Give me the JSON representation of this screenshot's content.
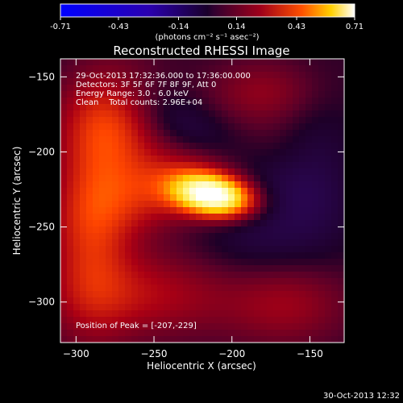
{
  "chart_data": {
    "type": "heatmap",
    "title": "Reconstructed RHESSI Image",
    "colorbar": {
      "tick_labels": [
        "-0.71",
        "-0.43",
        "-0.14",
        "0.14",
        "0.43",
        "0.71"
      ],
      "ticks": [
        -0.71,
        -0.43,
        -0.14,
        0.14,
        0.43,
        0.71
      ],
      "range": [
        -0.71,
        0.71
      ],
      "unit_label": "(photons cm⁻² s⁻¹ asec⁻²)",
      "colormap": "RHESSI signed (blue-purple-red-yellow-white)"
    },
    "info_lines": [
      "29-Oct-2013 17:32:36.000  to  17:36:00.000",
      "Detectors: 3F 5F 6F 7F 8F 9F, Att 0",
      "Energy Range: 3.0 - 6.0 keV",
      "Clean    Total counts: 2.96E+04"
    ],
    "peak_label": "Position of Peak = [-207,-229]",
    "peak": {
      "x": -207,
      "y": -229
    },
    "xlabel": "Heliocentric X (arcsec)",
    "ylabel": "Heliocentric Y (arcsec)",
    "xlim": [
      -310,
      -128
    ],
    "ylim": [
      -327,
      -138
    ],
    "xticks": [
      -300,
      -250,
      -200,
      -150
    ],
    "yticks": [
      -150,
      -200,
      -250,
      -300
    ],
    "xtick_labels": [
      "−300",
      "−250",
      "−200",
      "−150"
    ],
    "ytick_labels": [
      "−150",
      "−200",
      "−250",
      "−300"
    ],
    "grid": false,
    "sources": [
      {
        "x": -212,
        "y": -229,
        "sx": 17,
        "sy": 9,
        "amp": 0.71,
        "rot": -10
      },
      {
        "x": -240,
        "y": -222,
        "sx": 40,
        "sy": 18,
        "amp": 0.18,
        "rot": 20
      },
      {
        "x": -278,
        "y": -182,
        "sx": 22,
        "sy": 28,
        "amp": 0.22,
        "rot": 0
      },
      {
        "x": -290,
        "y": -255,
        "sx": 18,
        "sy": 45,
        "amp": 0.18,
        "rot": 0
      },
      {
        "x": -255,
        "y": -295,
        "sx": 40,
        "sy": 20,
        "amp": 0.14,
        "rot": 0
      },
      {
        "x": -165,
        "y": -300,
        "sx": 28,
        "sy": 20,
        "amp": 0.12,
        "rot": 0
      },
      {
        "x": -180,
        "y": -160,
        "sx": 25,
        "sy": 15,
        "amp": 0.1,
        "rot": 0
      },
      {
        "x": -220,
        "y": -190,
        "sx": 45,
        "sy": 14,
        "amp": -0.1,
        "rot": -30
      },
      {
        "x": -180,
        "y": -255,
        "sx": 30,
        "sy": 25,
        "amp": -0.08,
        "rot": 0
      },
      {
        "x": -145,
        "y": -210,
        "sx": 18,
        "sy": 35,
        "amp": -0.06,
        "rot": 0
      }
    ]
  },
  "footer_timestamp": "30-Oct-2013 12:32"
}
